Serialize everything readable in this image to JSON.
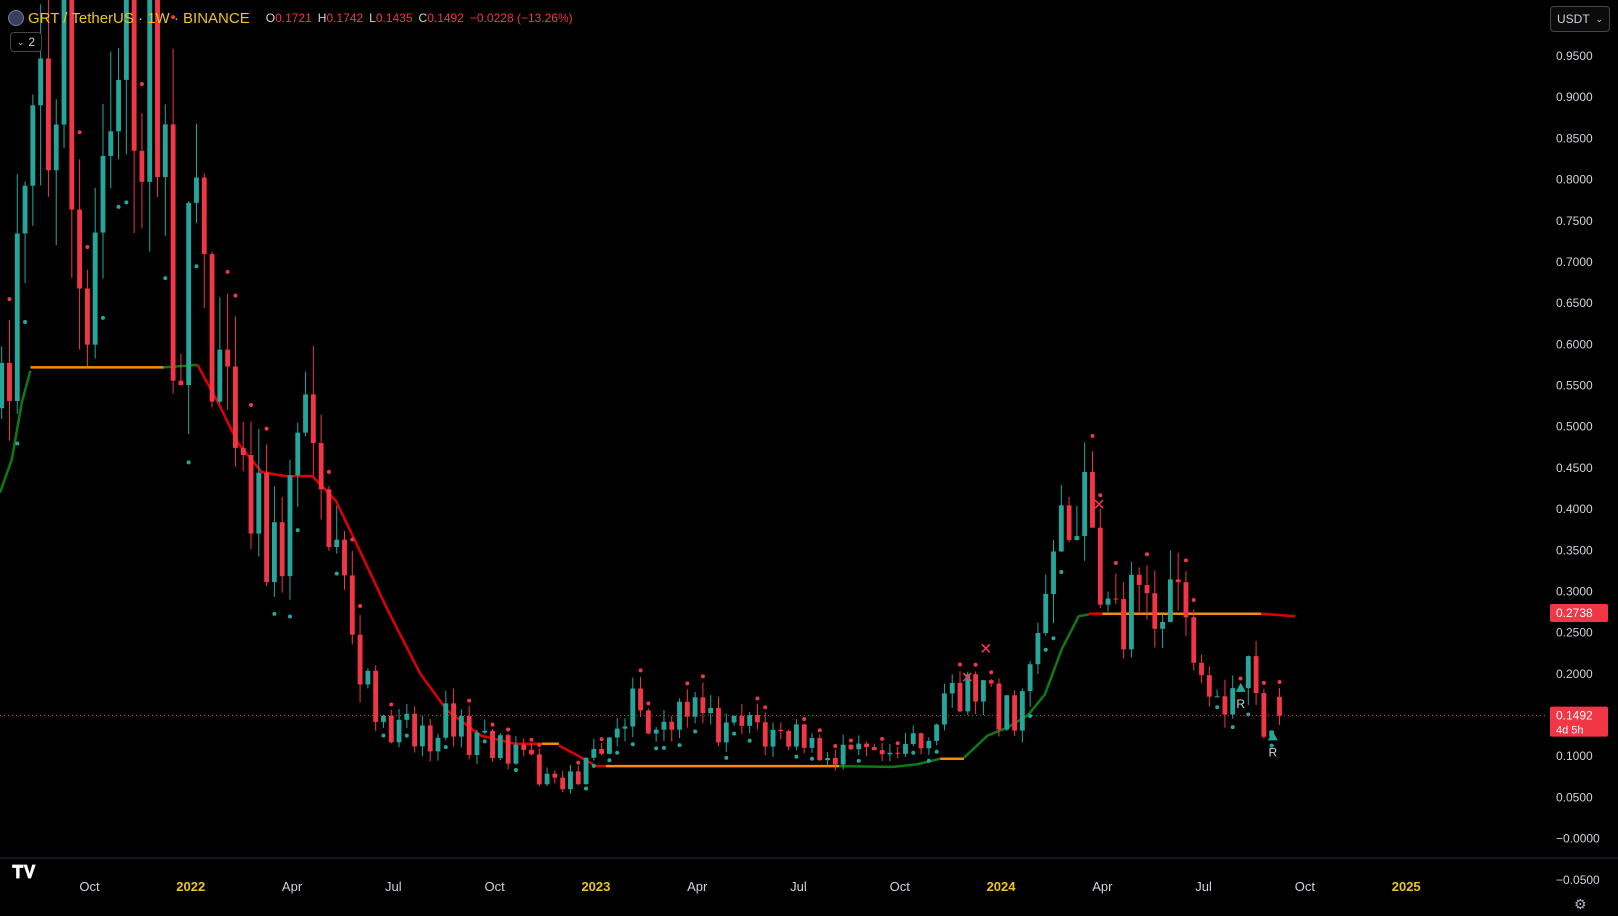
{
  "header": {
    "symbol": "GRT / TetherUS · 1W · BINANCE",
    "o_label": "O",
    "o_value": "0.1721",
    "h_label": "H",
    "h_value": "0.1742",
    "l_label": "L",
    "l_value": "0.1435",
    "c_label": "C",
    "c_value": "0.1492",
    "change": "−0.0228 (−13.26%)",
    "indicator_count": "2"
  },
  "currency_selector": {
    "value": "USDT"
  },
  "colors": {
    "up": "#26a69a",
    "down": "#f23645",
    "trend_green": "#0f7a14",
    "trend_red": "#e00000",
    "trend_orange": "#f48c06",
    "accent_text": "#f0c419"
  },
  "icons": {
    "symbol": "grt-coin-icon",
    "collapse": "chevron-down-icon",
    "logo": "tradingview-logo-icon",
    "settings": "gear-icon"
  },
  "chart_data": {
    "type": "candlestick",
    "timeframe": "1W",
    "y_axis": {
      "ticks": [
        "0.9500",
        "0.9000",
        "0.8500",
        "0.8000",
        "0.7500",
        "0.7000",
        "0.6500",
        "0.6000",
        "0.5500",
        "0.5000",
        "0.4500",
        "0.4000",
        "0.3500",
        "0.3000",
        "0.2500",
        "0.2000",
        "0.1500",
        "0.1000",
        "0.0500",
        "−0.0000",
        "−0.0500"
      ],
      "tick_values": [
        0.95,
        0.9,
        0.85,
        0.8,
        0.75,
        0.7,
        0.65,
        0.6,
        0.55,
        0.5,
        0.45,
        0.4,
        0.35,
        0.3,
        0.25,
        0.2,
        0.15,
        0.1,
        0.05,
        0,
        -0.05
      ],
      "range": [
        -0.094,
        1.018
      ]
    },
    "x_axis": {
      "ticks": [
        "Oct",
        "2022",
        "Apr",
        "Jul",
        "Oct",
        "2023",
        "Apr",
        "Jul",
        "Oct",
        "2024",
        "Apr",
        "Jul",
        "Oct",
        "2025"
      ],
      "tick_months": [
        -3,
        0,
        3,
        6,
        9,
        12,
        15,
        18,
        21,
        24,
        27,
        30,
        33,
        36
      ],
      "bold": [
        false,
        true,
        false,
        false,
        false,
        true,
        false,
        false,
        false,
        true,
        false,
        false,
        false,
        true
      ],
      "range_months": [
        -5.65,
        40.2
      ]
    },
    "price_labels": [
      {
        "text": "0.2738",
        "value": 0.2738,
        "color": "#f23645"
      },
      {
        "text": "0.1492",
        "sub": "4d 5h",
        "value": 0.1492,
        "color": "#f23645"
      }
    ],
    "current_price": 0.1492,
    "anchors": [
      [
        -5.6,
        0.55
      ],
      [
        -4.9,
        0.7
      ],
      [
        -4.4,
        0.85
      ],
      [
        -4.0,
        0.95
      ],
      [
        -3.6,
        0.9
      ],
      [
        -3.3,
        0.74
      ],
      [
        -3.0,
        0.62
      ],
      [
        -2.6,
        0.75
      ],
      [
        -2.3,
        0.78
      ],
      [
        -1.9,
        0.96
      ],
      [
        -1.5,
        0.9
      ],
      [
        -1.1,
        0.99
      ],
      [
        -0.7,
        0.8
      ],
      [
        -0.5,
        0.62
      ],
      [
        -0.25,
        0.66
      ],
      [
        0.05,
        0.7
      ],
      [
        0.35,
        0.67
      ],
      [
        0.7,
        0.6
      ],
      [
        1.0,
        0.52
      ],
      [
        1.4,
        0.42
      ],
      [
        1.8,
        0.43
      ],
      [
        2.1,
        0.4
      ],
      [
        2.4,
        0.34
      ],
      [
        2.8,
        0.36
      ],
      [
        3.1,
        0.44
      ],
      [
        3.4,
        0.5
      ],
      [
        3.6,
        0.42
      ],
      [
        3.9,
        0.4
      ],
      [
        4.2,
        0.36
      ],
      [
        4.45,
        0.33
      ],
      [
        4.8,
        0.22
      ],
      [
        5.2,
        0.18
      ],
      [
        5.6,
        0.14
      ],
      [
        6.0,
        0.12
      ],
      [
        6.4,
        0.13
      ],
      [
        6.8,
        0.12
      ],
      [
        7.2,
        0.13
      ],
      [
        7.7,
        0.15
      ],
      [
        8.2,
        0.12
      ],
      [
        8.8,
        0.12
      ],
      [
        9.2,
        0.11
      ],
      [
        9.6,
        0.1
      ],
      [
        10.1,
        0.09
      ],
      [
        10.4,
        0.07
      ],
      [
        11.0,
        0.07
      ],
      [
        11.6,
        0.08
      ],
      [
        12.1,
        0.1
      ],
      [
        12.5,
        0.15
      ],
      [
        13.0,
        0.16
      ],
      [
        13.5,
        0.14
      ],
      [
        14.0,
        0.15
      ],
      [
        14.6,
        0.16
      ],
      [
        15.2,
        0.14
      ],
      [
        16.0,
        0.13
      ],
      [
        16.7,
        0.13
      ],
      [
        17.4,
        0.12
      ],
      [
        18.0,
        0.12
      ],
      [
        18.8,
        0.11
      ],
      [
        19.4,
        0.1
      ],
      [
        20.0,
        0.1
      ],
      [
        20.6,
        0.09
      ],
      [
        21.2,
        0.1
      ],
      [
        21.6,
        0.12
      ],
      [
        22.0,
        0.15
      ],
      [
        22.5,
        0.16
      ],
      [
        23.0,
        0.19
      ],
      [
        23.5,
        0.17
      ],
      [
        23.9,
        0.16
      ],
      [
        24.3,
        0.15
      ],
      [
        24.7,
        0.16
      ],
      [
        25.1,
        0.23
      ],
      [
        25.5,
        0.3
      ],
      [
        25.8,
        0.44
      ],
      [
        26.1,
        0.42
      ],
      [
        26.5,
        0.39
      ],
      [
        26.8,
        0.33
      ],
      [
        27.1,
        0.27
      ],
      [
        27.5,
        0.25
      ],
      [
        27.9,
        0.28
      ],
      [
        28.3,
        0.26
      ],
      [
        28.7,
        0.3
      ],
      [
        29.0,
        0.3
      ],
      [
        29.4,
        0.26
      ],
      [
        29.8,
        0.23
      ],
      [
        30.2,
        0.2
      ],
      [
        30.6,
        0.17
      ],
      [
        30.9,
        0.2
      ],
      [
        31.3,
        0.2
      ],
      [
        31.6,
        0.16
      ],
      [
        31.9,
        0.14
      ],
      [
        32.2,
        0.15
      ],
      [
        32.48,
        0.1492
      ]
    ],
    "last_candle": {
      "o": 0.1721,
      "h": 0.1742,
      "l": 0.1435,
      "c": 0.1492
    },
    "trend_line": [
      {
        "color": "trend_green",
        "points": [
          [
            -5.65,
            0.42
          ],
          [
            -5.3,
            0.46
          ],
          [
            -5.0,
            0.53
          ],
          [
            -4.75,
            0.568
          ]
        ]
      },
      {
        "color": "trend_orange",
        "points": [
          [
            -4.75,
            0.572
          ],
          [
            -0.8,
            0.572
          ]
        ]
      },
      {
        "color": "trend_green",
        "points": [
          [
            -0.8,
            0.572
          ],
          [
            0.2,
            0.575
          ]
        ]
      },
      {
        "color": "trend_red",
        "points": [
          [
            0.2,
            0.575
          ],
          [
            0.8,
            0.53
          ],
          [
            1.4,
            0.48
          ],
          [
            2.1,
            0.445
          ],
          [
            2.8,
            0.44
          ],
          [
            3.6,
            0.44
          ],
          [
            4.3,
            0.41
          ],
          [
            5.0,
            0.35
          ],
          [
            5.8,
            0.28
          ],
          [
            6.8,
            0.2
          ],
          [
            7.6,
            0.155
          ],
          [
            8.6,
            0.125
          ],
          [
            9.6,
            0.115
          ],
          [
            10.4,
            0.115
          ]
        ]
      },
      {
        "color": "trend_orange",
        "points": [
          [
            10.4,
            0.115
          ],
          [
            10.9,
            0.115
          ]
        ]
      },
      {
        "color": "trend_red",
        "points": [
          [
            10.9,
            0.113
          ],
          [
            11.5,
            0.1
          ],
          [
            12.0,
            0.088
          ],
          [
            12.3,
            0.088
          ]
        ]
      },
      {
        "color": "trend_orange",
        "points": [
          [
            12.3,
            0.088
          ],
          [
            19.2,
            0.088
          ]
        ]
      },
      {
        "color": "trend_green",
        "points": [
          [
            19.2,
            0.088
          ],
          [
            20.8,
            0.087
          ],
          [
            21.5,
            0.09
          ],
          [
            22.2,
            0.097
          ]
        ]
      },
      {
        "color": "trend_orange",
        "points": [
          [
            22.2,
            0.097
          ],
          [
            22.9,
            0.097
          ]
        ]
      },
      {
        "color": "trend_green",
        "points": [
          [
            22.9,
            0.098
          ],
          [
            23.6,
            0.125
          ],
          [
            24.2,
            0.135
          ],
          [
            24.8,
            0.15
          ],
          [
            25.3,
            0.175
          ],
          [
            25.8,
            0.23
          ],
          [
            26.3,
            0.27
          ],
          [
            26.6,
            0.272
          ]
        ]
      },
      {
        "color": "trend_red",
        "points": [
          [
            26.6,
            0.273
          ],
          [
            27.0,
            0.273
          ]
        ]
      },
      {
        "color": "trend_orange",
        "points": [
          [
            27.0,
            0.273
          ],
          [
            31.7,
            0.273
          ]
        ]
      },
      {
        "color": "trend_red",
        "points": [
          [
            31.7,
            0.273
          ],
          [
            32.7,
            0.27
          ]
        ]
      }
    ],
    "markers": [
      {
        "type": "x",
        "month": 23.0,
        "value": 0.196,
        "color": "#f23645"
      },
      {
        "type": "x",
        "month": 23.55,
        "value": 0.231,
        "color": "#f23645"
      },
      {
        "type": "x",
        "month": 26.9,
        "value": 0.406,
        "color": "#f23645"
      },
      {
        "type": "triangle",
        "month": 31.1,
        "value": 0.183,
        "color": "#26a69a",
        "label": "R"
      },
      {
        "type": "triangle",
        "month": 32.05,
        "value": 0.124,
        "color": "#26a69a",
        "label": "R"
      }
    ]
  }
}
